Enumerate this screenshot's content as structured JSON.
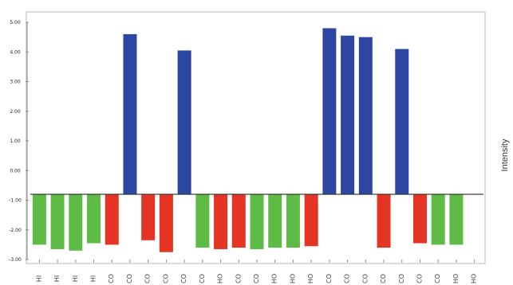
{
  "chart_data": {
    "type": "bar",
    "title": "",
    "xlabel": "",
    "ylabel": "Intensity",
    "ylim": [
      -3.0,
      5.0
    ],
    "baseline": -0.8,
    "y_ticks": [
      5.0,
      4.0,
      3.0,
      2.0,
      1.0,
      0.0,
      -1.0,
      -2.0,
      -3.0
    ],
    "y_tick_labels": [
      "5.00",
      "4.00",
      "3.00",
      "2.00",
      "1.00",
      "0.00",
      "-1.00",
      "-2.00",
      "-3.00"
    ],
    "grid": false,
    "legend": "none",
    "categories": [
      "HI",
      "HI",
      "HI",
      "HI",
      "CO",
      "CO",
      "CO",
      "CO",
      "CO",
      "CO",
      "HO",
      "CO",
      "CO",
      "HO",
      "HO",
      "HO",
      "CO",
      "CO",
      "CO",
      "CO",
      "CO",
      "CO",
      "CO",
      "HO",
      "HO"
    ],
    "values": [
      -2.5,
      -2.65,
      -2.7,
      -2.45,
      -2.5,
      4.6,
      -2.35,
      -2.75,
      4.05,
      -2.6,
      -2.65,
      -2.6,
      -2.65,
      -2.6,
      -2.6,
      -2.55,
      4.8,
      4.55,
      4.5,
      -2.6,
      4.1,
      -2.45,
      -2.5,
      -2.5,
      null
    ],
    "bar_colors": [
      "#5ebc46",
      "#5ebc46",
      "#5ebc46",
      "#5ebc46",
      "#e53423",
      "#2d46a2",
      "#e53423",
      "#e53423",
      "#2d46a2",
      "#5ebc46",
      "#e53423",
      "#e53423",
      "#5ebc46",
      "#5ebc46",
      "#5ebc46",
      "#e53423",
      "#2d46a2",
      "#2d46a2",
      "#2d46a2",
      "#e53423",
      "#2d46a2",
      "#e53423",
      "#5ebc46",
      "#5ebc46",
      null
    ]
  }
}
